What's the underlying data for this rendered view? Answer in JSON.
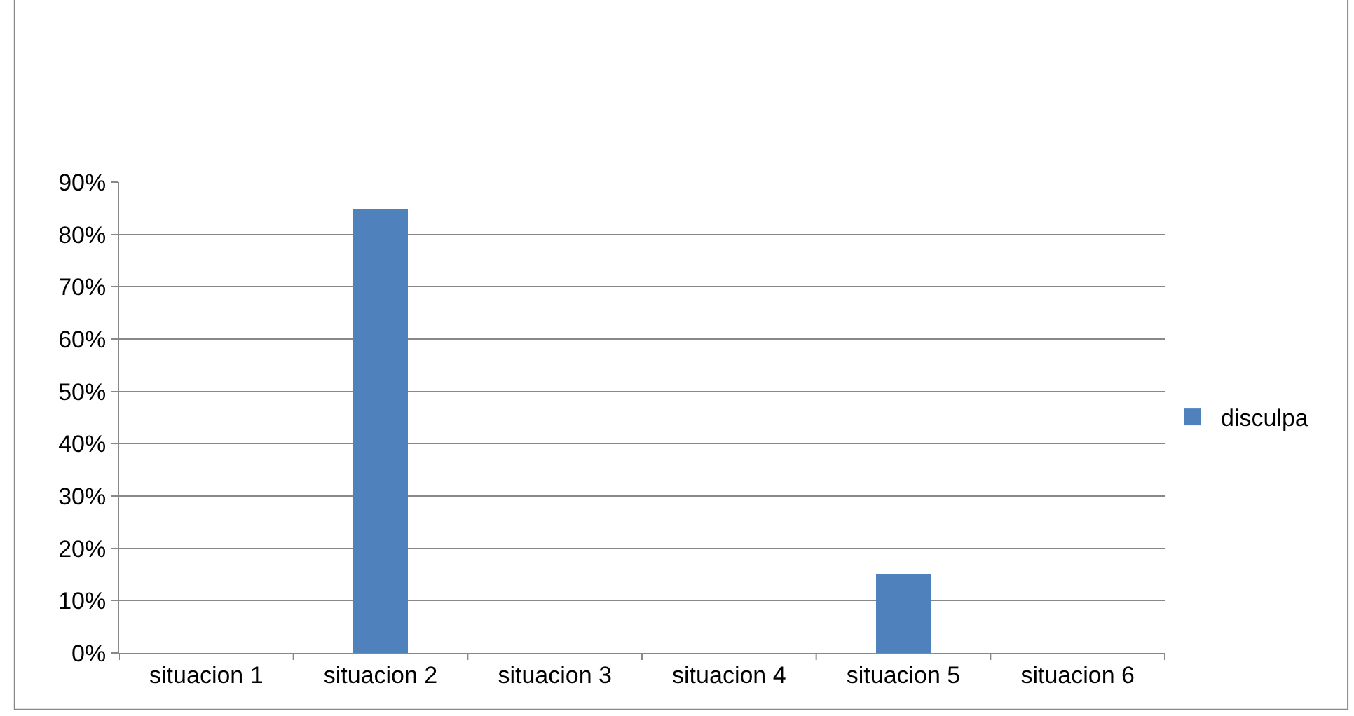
{
  "chart_data": {
    "type": "bar",
    "categories": [
      "situacion 1",
      "situacion 2",
      "situacion 3",
      "situacion 4",
      "situacion 5",
      "situacion 6"
    ],
    "series": [
      {
        "name": "disculpa",
        "color": "#4f81bd",
        "values": [
          0,
          85,
          0,
          0,
          15,
          0
        ]
      }
    ],
    "ylim": [
      0,
      90
    ],
    "yticks": [
      {
        "value": 0,
        "label": "0%"
      },
      {
        "value": 10,
        "label": "10%"
      },
      {
        "value": 20,
        "label": "20%"
      },
      {
        "value": 30,
        "label": "30%"
      },
      {
        "value": 40,
        "label": "40%"
      },
      {
        "value": 50,
        "label": "50%"
      },
      {
        "value": 60,
        "label": "60%"
      },
      {
        "value": 70,
        "label": "70%"
      },
      {
        "value": 80,
        "label": "80%"
      },
      {
        "value": 90,
        "label": "90%"
      }
    ],
    "grid": "y",
    "legend": "right"
  }
}
